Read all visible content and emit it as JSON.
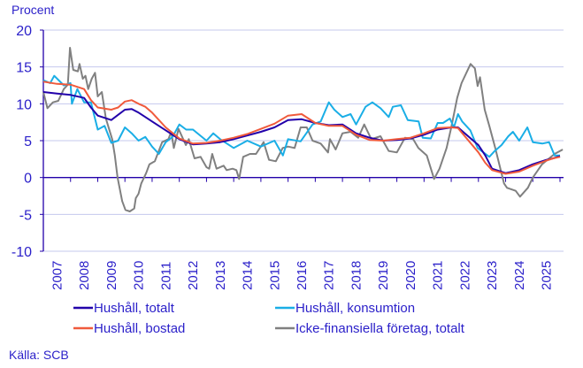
{
  "chart_data": {
    "type": "line",
    "ylabel": "Procent",
    "ylim": [
      -10,
      20
    ],
    "yticks": [
      -10,
      -5,
      0,
      5,
      10,
      15,
      20
    ],
    "xlim": [
      2007,
      2026.13
    ],
    "xtick_labels": [
      "2007",
      "2008",
      "2009",
      "2010",
      "2011",
      "2012",
      "2013",
      "2014",
      "2015",
      "2016",
      "2017",
      "2018",
      "2019",
      "2020",
      "2021",
      "2022",
      "2023",
      "2024",
      "2025"
    ],
    "grid": true,
    "legend_placement": "bottom",
    "source": "Källa: SCB",
    "series": [
      {
        "name": "Hushåll, totalt",
        "color": "#2200aa",
        "x": [
          2007.0,
          2007.5,
          2008.0,
          2008.5,
          2008.75,
          2009.0,
          2009.5,
          2009.75,
          2010.0,
          2010.25,
          2010.5,
          2010.75,
          2011.0,
          2011.5,
          2012.0,
          2012.5,
          2013.0,
          2013.5,
          2014.0,
          2014.5,
          2015.0,
          2015.5,
          2016.0,
          2016.5,
          2017.0,
          2017.5,
          2018.0,
          2018.5,
          2019.0,
          2019.5,
          2020.0,
          2020.5,
          2021.0,
          2021.5,
          2022.0,
          2022.25,
          2022.5,
          2023.0,
          2023.25,
          2023.5,
          2024.0,
          2024.5,
          2025.0,
          2025.5,
          2025.75,
          2026.0
        ],
        "y": [
          11.6,
          11.4,
          11.2,
          10.8,
          9.5,
          8.4,
          7.8,
          8.5,
          9.2,
          9.3,
          8.8,
          8.2,
          7.6,
          6.4,
          5.2,
          4.5,
          4.6,
          4.8,
          5.2,
          5.7,
          6.2,
          6.8,
          7.8,
          7.9,
          7.4,
          7.1,
          7.2,
          6.0,
          5.4,
          5.0,
          5.1,
          5.3,
          5.8,
          6.5,
          6.8,
          6.8,
          6.0,
          4.4,
          3.0,
          1.2,
          0.6,
          1.0,
          1.8,
          2.4,
          2.6,
          2.9
        ]
      },
      {
        "name": "Hushåll, bostad",
        "color": "#f05a3c",
        "x": [
          2007.0,
          2007.5,
          2008.0,
          2008.5,
          2008.75,
          2009.0,
          2009.5,
          2009.75,
          2010.0,
          2010.25,
          2010.5,
          2010.75,
          2011.0,
          2011.5,
          2012.0,
          2012.5,
          2013.0,
          2013.5,
          2014.0,
          2014.5,
          2015.0,
          2015.5,
          2016.0,
          2016.5,
          2017.0,
          2017.5,
          2018.0,
          2018.5,
          2019.0,
          2019.5,
          2020.0,
          2020.5,
          2021.0,
          2021.5,
          2022.0,
          2022.25,
          2022.5,
          2023.0,
          2023.25,
          2023.5,
          2024.0,
          2024.5,
          2025.0,
          2025.5,
          2025.75,
          2026.0
        ],
        "y": [
          13.0,
          12.7,
          12.6,
          12.0,
          10.5,
          9.5,
          9.2,
          9.5,
          10.3,
          10.5,
          10.0,
          9.6,
          8.8,
          6.8,
          5.3,
          4.6,
          4.7,
          5.0,
          5.4,
          5.9,
          6.6,
          7.3,
          8.4,
          8.6,
          7.4,
          7.0,
          7.0,
          5.8,
          5.1,
          5.0,
          5.2,
          5.4,
          6.0,
          6.7,
          6.8,
          6.7,
          5.6,
          3.4,
          2.0,
          1.0,
          0.5,
          0.8,
          1.6,
          2.3,
          2.6,
          2.8
        ]
      },
      {
        "name": "Hushåll, konsumtion",
        "color": "#1aaee6",
        "x": [
          2007.0,
          2007.25,
          2007.4,
          2007.75,
          2008.0,
          2008.05,
          2008.25,
          2008.5,
          2008.75,
          2009.0,
          2009.25,
          2009.5,
          2009.75,
          2010.0,
          2010.25,
          2010.5,
          2010.75,
          2011.0,
          2011.25,
          2011.5,
          2011.75,
          2012.0,
          2012.25,
          2012.5,
          2013.0,
          2013.25,
          2013.5,
          2014.0,
          2014.5,
          2015.0,
          2015.5,
          2015.81,
          2016.0,
          2016.46,
          2016.9,
          2017.2,
          2017.5,
          2017.7,
          2018.0,
          2018.3,
          2018.5,
          2018.85,
          2019.1,
          2019.4,
          2019.7,
          2019.85,
          2020.15,
          2020.4,
          2020.8,
          2020.95,
          2021.25,
          2021.5,
          2021.7,
          2021.95,
          2022.1,
          2022.25,
          2022.4,
          2022.7,
          2022.97,
          2023.4,
          2023.6,
          2023.85,
          2024.1,
          2024.27,
          2024.5,
          2024.8,
          2025.0,
          2025.35,
          2025.6,
          2025.8,
          2026.0
        ],
        "y": [
          13.2,
          12.8,
          13.8,
          12.5,
          12.8,
          10.0,
          12.0,
          10.2,
          10.2,
          6.5,
          7.0,
          4.7,
          5.0,
          6.8,
          6.0,
          5.0,
          5.5,
          4.2,
          3.2,
          4.8,
          5.5,
          7.2,
          6.5,
          6.5,
          5.0,
          6.0,
          5.2,
          4.0,
          5.0,
          4.2,
          5.0,
          3.0,
          5.2,
          4.9,
          7.2,
          7.6,
          10.2,
          9.2,
          8.2,
          8.6,
          7.2,
          9.6,
          10.2,
          9.4,
          8.2,
          9.6,
          9.8,
          7.8,
          7.6,
          5.4,
          5.3,
          7.4,
          7.4,
          8.0,
          6.8,
          8.6,
          7.6,
          6.4,
          4.0,
          2.8,
          3.6,
          4.4,
          5.6,
          6.2,
          5.0,
          6.8,
          4.8,
          4.6,
          4.8,
          3.0,
          3.0
        ]
      },
      {
        "name": "Icke-finansiella företag, totalt",
        "color": "#808080",
        "x": [
          2007.0,
          2007.15,
          2007.35,
          2007.55,
          2007.75,
          2007.9,
          2007.98,
          2008.1,
          2008.27,
          2008.33,
          2008.45,
          2008.55,
          2008.65,
          2008.78,
          2008.9,
          2009.0,
          2009.15,
          2009.3,
          2009.53,
          2009.63,
          2009.73,
          2009.9,
          2010.02,
          2010.18,
          2010.34,
          2010.4,
          2010.5,
          2010.6,
          2010.78,
          2010.9,
          2011.1,
          2011.37,
          2011.6,
          2011.7,
          2011.8,
          2011.97,
          2012.24,
          2012.35,
          2012.56,
          2012.78,
          2013.0,
          2013.1,
          2013.21,
          2013.37,
          2013.63,
          2013.74,
          2013.96,
          2014.1,
          2014.2,
          2014.35,
          2014.6,
          2014.82,
          2015.1,
          2015.3,
          2015.55,
          2015.8,
          2016.0,
          2016.24,
          2016.46,
          2016.69,
          2016.9,
          2017.2,
          2017.47,
          2017.54,
          2017.75,
          2018.0,
          2018.3,
          2018.58,
          2018.8,
          2019.06,
          2019.4,
          2019.7,
          2020.0,
          2020.3,
          2020.6,
          2020.79,
          2021.1,
          2021.37,
          2021.57,
          2021.83,
          2022.0,
          2022.22,
          2022.38,
          2022.71,
          2022.87,
          2022.97,
          2023.06,
          2023.23,
          2023.4,
          2023.62,
          2023.94,
          2024.05,
          2024.37,
          2024.53,
          2024.82,
          2025.0,
          2025.34,
          2025.8,
          2026.1
        ],
        "y": [
          11.6,
          9.4,
          10.2,
          10.4,
          12.0,
          12.6,
          17.6,
          14.6,
          14.4,
          15.4,
          13.4,
          13.8,
          12.0,
          13.4,
          14.2,
          11.0,
          11.6,
          8.0,
          5.2,
          3.0,
          0.0,
          -3.2,
          -4.4,
          -4.6,
          -4.2,
          -2.8,
          -2.2,
          -0.8,
          0.6,
          1.8,
          2.2,
          4.8,
          5.2,
          6.2,
          4.0,
          6.6,
          4.4,
          5.2,
          2.6,
          2.8,
          1.4,
          1.2,
          3.2,
          1.2,
          1.6,
          1.0,
          1.2,
          1.0,
          -0.2,
          2.8,
          3.2,
          3.2,
          4.8,
          2.4,
          2.2,
          4.0,
          4.2,
          4.0,
          6.8,
          6.8,
          5.0,
          4.6,
          3.4,
          5.2,
          3.8,
          6.0,
          6.2,
          5.4,
          7.2,
          5.2,
          5.6,
          3.6,
          3.4,
          5.4,
          5.2,
          4.0,
          3.0,
          -0.2,
          1.2,
          4.0,
          6.8,
          10.8,
          12.8,
          15.4,
          14.8,
          12.4,
          13.6,
          9.2,
          7.0,
          4.0,
          -0.8,
          -1.4,
          -1.8,
          -2.6,
          -1.4,
          0.0,
          1.8,
          3.2,
          3.8
        ]
      }
    ]
  }
}
